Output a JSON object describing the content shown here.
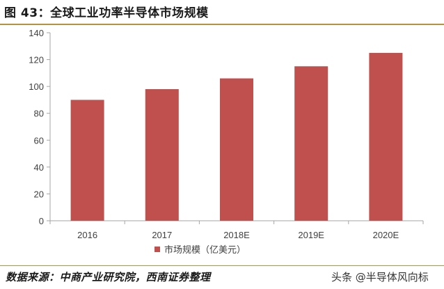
{
  "title": "图 43：全球工业功率半导体市场规模",
  "source": "数据来源：中商产业研究院，西南证券整理",
  "watermark": "头条 @半导体风向标",
  "colors": {
    "bar": "#c0504d",
    "axis": "#a6a6a6",
    "rule": "#b8923a"
  },
  "chart_data": {
    "type": "bar",
    "categories": [
      "2016",
      "2017",
      "2018E",
      "2019E",
      "2020E"
    ],
    "series": [
      {
        "name": "市场规模（亿美元）",
        "values": [
          90,
          98,
          106,
          115,
          125
        ]
      }
    ],
    "ylim": [
      0,
      140
    ],
    "yticks": [
      0,
      20,
      40,
      60,
      80,
      100,
      120,
      140
    ],
    "grid": false,
    "legend": "bottom-center"
  }
}
